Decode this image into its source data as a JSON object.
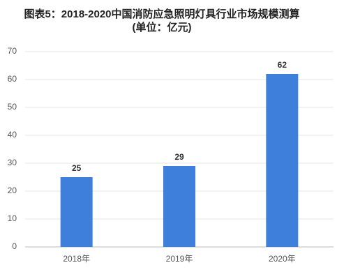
{
  "chart_data": {
    "type": "bar",
    "title": "图表5：2018-2020中国消防应急照明灯具行业市场规模测算",
    "subtitle": "(单位：亿元)",
    "categories": [
      "2018年",
      "2019年",
      "2020年"
    ],
    "values": [
      25,
      29,
      62
    ],
    "color": "#3f7fdc",
    "ylim": [
      0,
      70
    ],
    "yticks": [
      0,
      10,
      20,
      30,
      40,
      50,
      60,
      70
    ],
    "grid": true
  }
}
